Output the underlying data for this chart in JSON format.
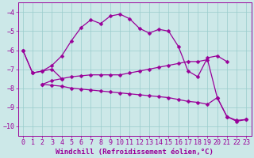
{
  "background_color": "#cce8e8",
  "grid_color": "#99cccc",
  "line_color": "#990099",
  "marker": "D",
  "markersize": 2.5,
  "linewidth": 0.9,
  "xlabel": "Windchill (Refroidissement éolien,°C)",
  "xlabel_fontsize": 6.5,
  "tick_fontsize": 6,
  "xlim": [
    -0.5,
    23.5
  ],
  "ylim": [
    -10.5,
    -3.5
  ],
  "yticks": [
    -10,
    -9,
    -8,
    -7,
    -6,
    -5,
    -4
  ],
  "xticks": [
    0,
    1,
    2,
    3,
    4,
    5,
    6,
    7,
    8,
    9,
    10,
    11,
    12,
    13,
    14,
    15,
    16,
    17,
    18,
    19,
    20,
    21,
    22,
    23
  ],
  "series": [
    {
      "x": [
        0,
        1,
        2,
        3,
        4,
        5,
        6,
        7,
        8,
        9,
        10,
        11,
        12,
        13,
        14,
        15,
        16,
        17,
        18,
        19,
        20,
        21
      ],
      "y": [
        -6.0,
        -7.2,
        -7.1,
        -6.8,
        -6.3,
        -5.5,
        -4.8,
        -4.4,
        -4.6,
        -4.2,
        -4.1,
        -4.35,
        -4.85,
        -5.1,
        -4.9,
        -5.0,
        -5.8,
        -7.1,
        -7.4,
        -6.4,
        -6.3,
        -6.6
      ]
    },
    {
      "x": [
        0,
        1,
        2,
        3,
        4
      ],
      "y": [
        -6.0,
        -7.2,
        -7.1,
        -7.0,
        -7.5
      ]
    },
    {
      "x": [
        2,
        3,
        4,
        5,
        6,
        7,
        8,
        9,
        10,
        11,
        12,
        13,
        14,
        15,
        16,
        17,
        18,
        19,
        20,
        21,
        22,
        23
      ],
      "y": [
        -7.8,
        -7.6,
        -7.5,
        -7.4,
        -7.35,
        -7.3,
        -7.3,
        -7.3,
        -7.3,
        -7.2,
        -7.1,
        -7.0,
        -6.9,
        -6.8,
        -6.7,
        -6.6,
        -6.6,
        -6.5,
        -8.5,
        -9.5,
        -9.7,
        -9.65
      ]
    },
    {
      "x": [
        2,
        3,
        4,
        5,
        6,
        7,
        8,
        9,
        10,
        11,
        12,
        13,
        14,
        15,
        16,
        17,
        18,
        19,
        20,
        21,
        22,
        23
      ],
      "y": [
        -7.8,
        -7.85,
        -7.9,
        -8.0,
        -8.05,
        -8.1,
        -8.15,
        -8.2,
        -8.25,
        -8.3,
        -8.35,
        -8.4,
        -8.45,
        -8.5,
        -8.6,
        -8.7,
        -8.75,
        -8.85,
        -8.5,
        -9.5,
        -9.75,
        -9.65
      ]
    }
  ]
}
